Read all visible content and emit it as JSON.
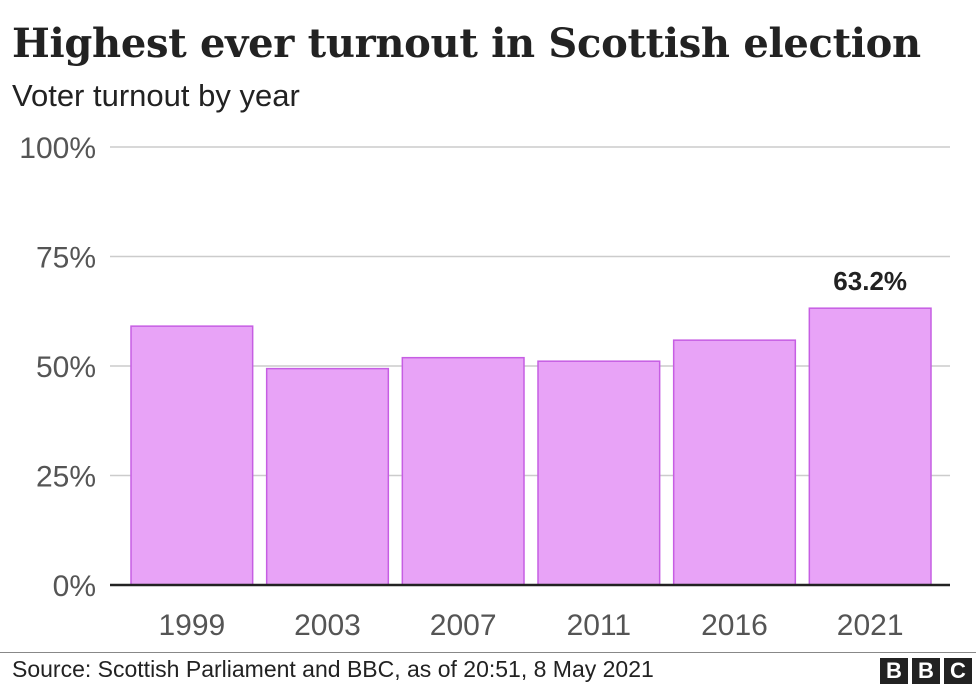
{
  "header": {
    "title": "Highest ever turnout in Scottish election",
    "subtitle": "Voter turnout by year"
  },
  "chart_data": {
    "type": "bar",
    "title": "Highest ever turnout in Scottish election",
    "subtitle": "Voter turnout by year",
    "categories": [
      "1999",
      "2003",
      "2007",
      "2011",
      "2016",
      "2021"
    ],
    "values": [
      59.1,
      49.4,
      51.9,
      51.1,
      55.9,
      63.2
    ],
    "ylim": [
      0,
      100
    ],
    "yticks": [
      0,
      25,
      50,
      75,
      100
    ],
    "ytick_labels": [
      "0%",
      "25%",
      "50%",
      "75%",
      "100%"
    ],
    "data_labels": [
      null,
      null,
      null,
      null,
      null,
      "63.2%"
    ],
    "grid": true,
    "bar_color": "#e8a3f7",
    "bar_edge_color": "#c65ee3",
    "gridline_color": "#cccccc",
    "axis_color": "#222222"
  },
  "footer": {
    "source": "Source: Scottish Parliament and BBC, as of 20:51,  8 May 2021",
    "logo_letters": [
      "B",
      "B",
      "C"
    ]
  }
}
